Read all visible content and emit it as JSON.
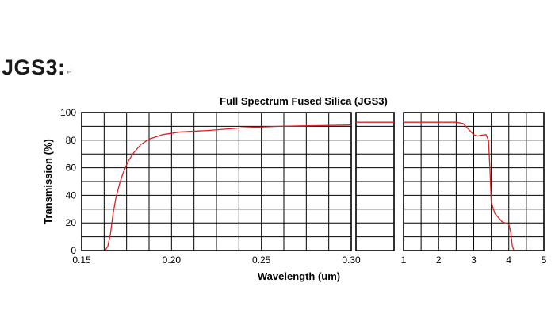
{
  "heading": {
    "text": "JGS3:",
    "mark": "↵"
  },
  "chart_data": {
    "type": "line",
    "title": "Full Spectrum Fused Silica (JGS3)",
    "xlabel": "Wavelength (um)",
    "ylabel": "Transmission (%)",
    "ylim": [
      0,
      100
    ],
    "yticks": [
      0,
      20,
      40,
      60,
      80,
      100
    ],
    "grid": true,
    "line_color": "#e02020",
    "panels": [
      {
        "name": "uv",
        "xlim": [
          0.15,
          0.3
        ],
        "xticks": [
          "0.15",
          "0.20",
          "0.25",
          "0.30"
        ],
        "points": [
          [
            0.163,
            0
          ],
          [
            0.1645,
            3
          ],
          [
            0.166,
            12
          ],
          [
            0.1675,
            27
          ],
          [
            0.169,
            38
          ],
          [
            0.171,
            48
          ],
          [
            0.173,
            56
          ],
          [
            0.176,
            65
          ],
          [
            0.179,
            71
          ],
          [
            0.183,
            77
          ],
          [
            0.188,
            81
          ],
          [
            0.195,
            84
          ],
          [
            0.205,
            86
          ],
          [
            0.22,
            87
          ],
          [
            0.24,
            89
          ],
          [
            0.26,
            90
          ],
          [
            0.28,
            90.5
          ],
          [
            0.3,
            91
          ]
        ]
      },
      {
        "name": "mid",
        "xlim": [
          0.3,
          1.0
        ],
        "xticks": [],
        "points": [
          [
            0.3,
            93
          ],
          [
            1.0,
            93
          ]
        ]
      },
      {
        "name": "ir",
        "xlim": [
          1,
          5
        ],
        "xticks": [
          "1",
          "2",
          "3",
          "4",
          "5"
        ],
        "points": [
          [
            1.0,
            93
          ],
          [
            2.5,
            93
          ],
          [
            2.7,
            92
          ],
          [
            2.85,
            88
          ],
          [
            3.0,
            84
          ],
          [
            3.1,
            83
          ],
          [
            3.2,
            83.5
          ],
          [
            3.35,
            84
          ],
          [
            3.42,
            80
          ],
          [
            3.46,
            60
          ],
          [
            3.5,
            35
          ],
          [
            3.6,
            27
          ],
          [
            3.7,
            24
          ],
          [
            3.8,
            21
          ],
          [
            3.9,
            20
          ],
          [
            4.0,
            19
          ],
          [
            4.05,
            14
          ],
          [
            4.1,
            3
          ],
          [
            4.15,
            0
          ]
        ]
      }
    ]
  }
}
